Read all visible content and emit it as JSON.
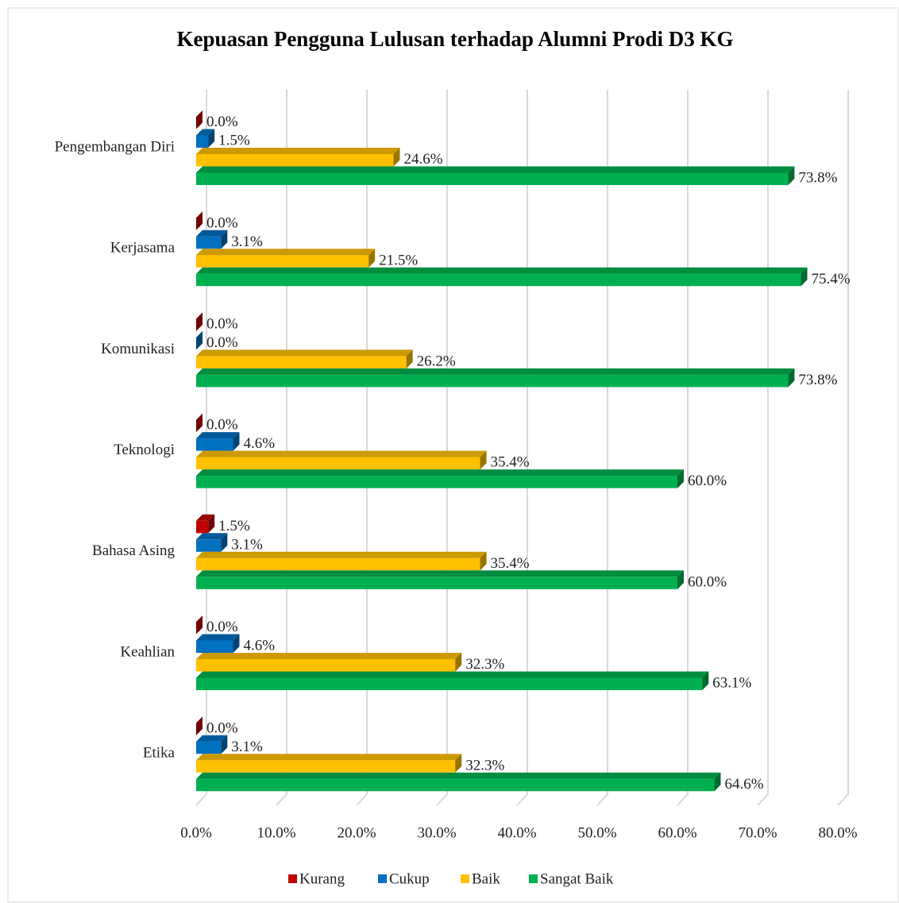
{
  "chart_data": {
    "type": "bar3d_horizontal",
    "title": "Kepuasan Pengguna Lulusan terhadap Alumni Prodi D3 KG",
    "categories": [
      "Pengembangan Diri",
      "Kerjasama",
      "Komunikasi",
      "Teknologi",
      "Bahasa Asing",
      "Keahlian",
      "Etika"
    ],
    "series": [
      {
        "name": "Kurang",
        "color": "#c00000",
        "values": [
          0,
          0,
          0,
          0,
          1.5,
          0,
          0
        ],
        "value_labels": [
          "0.0%",
          "0.0%",
          "0.0%",
          "0.0%",
          "1.5%",
          "0.0%",
          "0.0%"
        ]
      },
      {
        "name": "Cukup",
        "color": "#0070c0",
        "values": [
          1.5,
          3.1,
          0,
          4.6,
          3.1,
          4.6,
          3.1
        ],
        "value_labels": [
          "1.5%",
          "3.1%",
          "0.0%",
          "4.6%",
          "3.1%",
          "4.6%",
          "3.1%"
        ]
      },
      {
        "name": "Baik",
        "color": "#ffc000",
        "values": [
          24.6,
          21.5,
          26.2,
          35.4,
          35.4,
          32.3,
          32.3
        ],
        "value_labels": [
          "24.6%",
          "21.5%",
          "26.2%",
          "35.4%",
          "35.4%",
          "32.3%",
          "32.3%"
        ]
      },
      {
        "name": "Sangat Baik",
        "color": "#00b050",
        "values": [
          73.8,
          75.4,
          73.8,
          60.0,
          60.0,
          63.1,
          64.6
        ],
        "value_labels": [
          "73.8%",
          "75.4%",
          "73.8%",
          "60.0%",
          "60.0%",
          "63.1%",
          "64.6%"
        ]
      }
    ],
    "xlim": [
      0,
      80
    ],
    "xticks": [
      {
        "value": 0,
        "label": "0.0%"
      },
      {
        "value": 10,
        "label": "10.0%"
      },
      {
        "value": 20,
        "label": "20.0%"
      },
      {
        "value": 30,
        "label": "30.0%"
      },
      {
        "value": 40,
        "label": "40.0%"
      },
      {
        "value": 50,
        "label": "50.0%"
      },
      {
        "value": 60,
        "label": "60.0%"
      },
      {
        "value": 70,
        "label": "70.0%"
      },
      {
        "value": 80,
        "label": "80.0%"
      }
    ],
    "grid": true,
    "legend": "bottom"
  }
}
